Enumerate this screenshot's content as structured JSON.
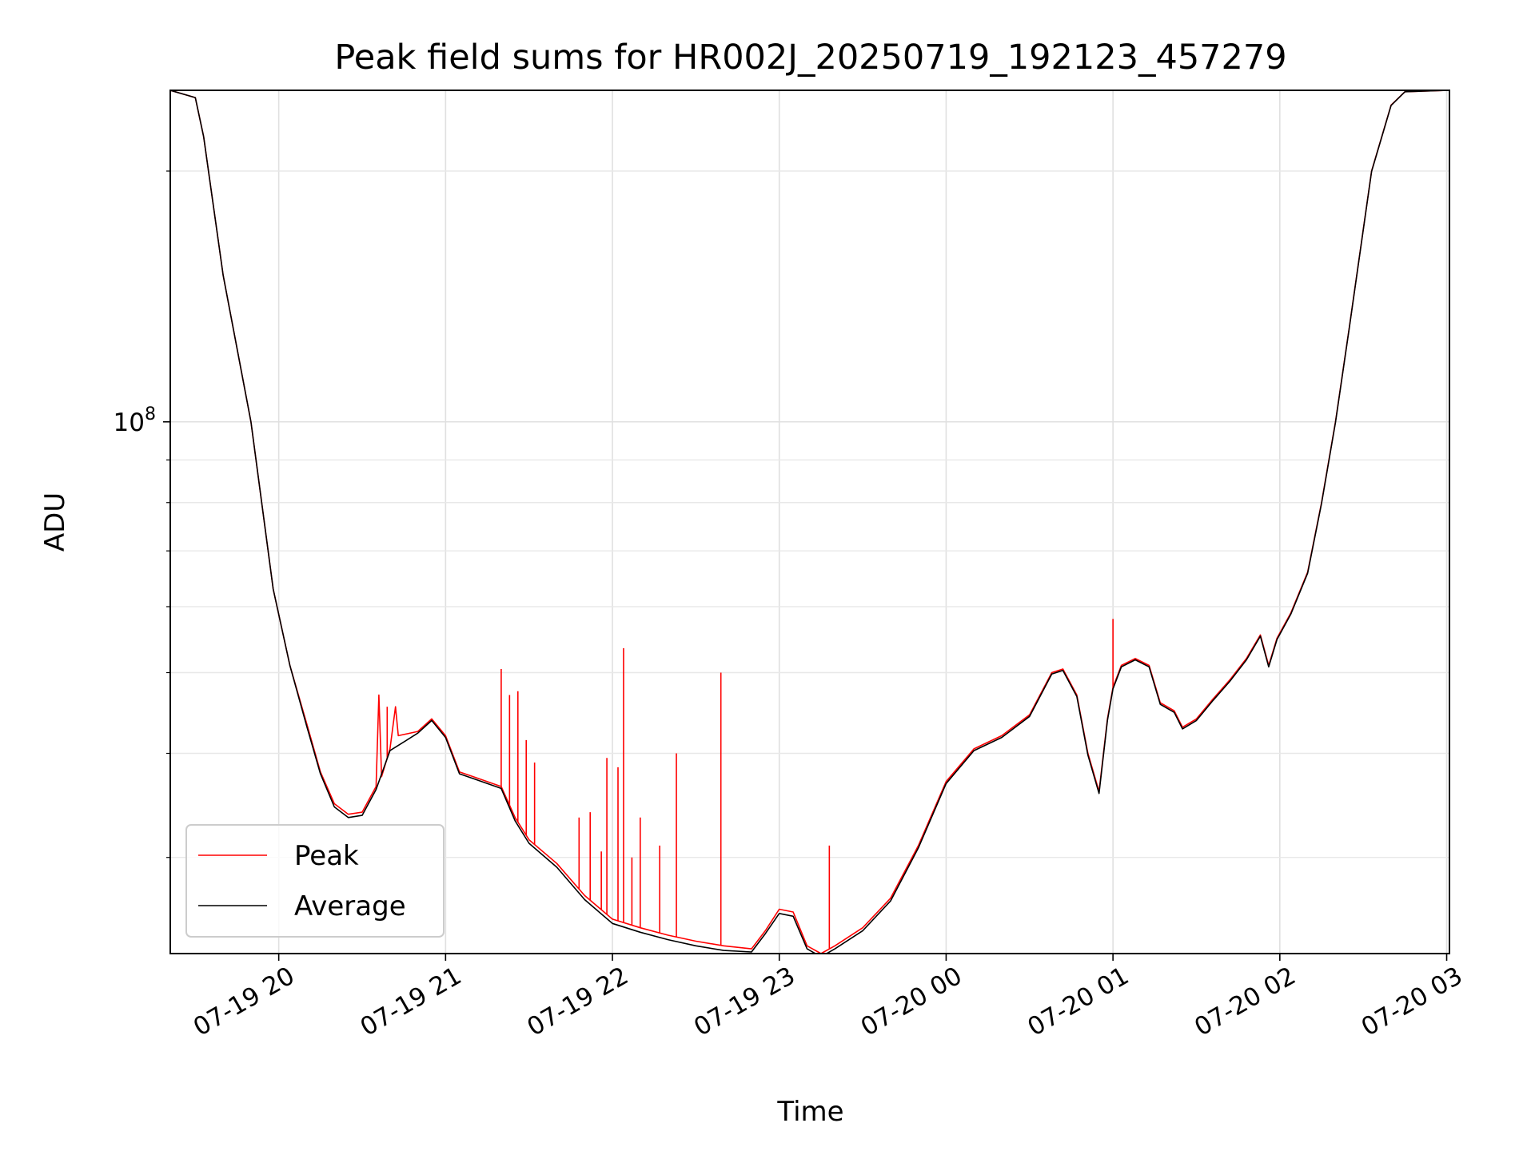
{
  "chart_data": {
    "type": "line",
    "title": "Peak field sums for HR002J_20250719_192123_457279",
    "xlabel": "Time",
    "ylabel": "ADU",
    "y_scale": "log",
    "x_unit": "datetime",
    "xlim": [
      "2025-07-19 19:21",
      "2025-07-20 03:01"
    ],
    "ylim": [
      23000000,
      250000000
    ],
    "grid": true,
    "legend": {
      "placement": "lower-left"
    },
    "x_ticks": [
      {
        "t": "2025-07-19 20:00",
        "label": "07-19 20"
      },
      {
        "t": "2025-07-19 21:00",
        "label": "07-19 21"
      },
      {
        "t": "2025-07-19 22:00",
        "label": "07-19 22"
      },
      {
        "t": "2025-07-19 23:00",
        "label": "07-19 23"
      },
      {
        "t": "2025-07-20 00:00",
        "label": "07-20 00"
      },
      {
        "t": "2025-07-20 01:00",
        "label": "07-20 01"
      },
      {
        "t": "2025-07-20 02:00",
        "label": "07-20 02"
      },
      {
        "t": "2025-07-20 03:00",
        "label": "07-20 03"
      }
    ],
    "y_major_ticks": [
      {
        "v": 100000000,
        "label_base": "10",
        "label_exp": "8"
      }
    ],
    "y_minor_ticks": [
      30000000,
      40000000,
      50000000,
      60000000,
      70000000,
      80000000,
      90000000,
      200000000
    ],
    "series": [
      {
        "name": "Peak",
        "color": "#ff0000",
        "points": [
          [
            "2025-07-19 19:21",
            250000000
          ],
          [
            "2025-07-19 19:30",
            245000000
          ],
          [
            "2025-07-19 19:33",
            220000000
          ],
          [
            "2025-07-19 19:40",
            150000000
          ],
          [
            "2025-07-19 19:50",
            100000000
          ],
          [
            "2025-07-19 19:58",
            63000000
          ],
          [
            "2025-07-19 20:04",
            51000000
          ],
          [
            "2025-07-19 20:10",
            43500000
          ],
          [
            "2025-07-19 20:15",
            38000000
          ],
          [
            "2025-07-19 20:20",
            34800000
          ],
          [
            "2025-07-19 20:25",
            33800000
          ],
          [
            "2025-07-19 20:30",
            34000000
          ],
          [
            "2025-07-19 20:35",
            36500000
          ],
          [
            "2025-07-19 20:36",
            47000000
          ],
          [
            "2025-07-19 20:37",
            37500000
          ],
          [
            "2025-07-19 20:40",
            40500000
          ],
          [
            "2025-07-19 20:42",
            45500000
          ],
          [
            "2025-07-19 20:43",
            42000000
          ],
          [
            "2025-07-19 20:50",
            42500000
          ],
          [
            "2025-07-19 20:55",
            44000000
          ],
          [
            "2025-07-19 21:00",
            42000000
          ],
          [
            "2025-07-19 21:05",
            38000000
          ],
          [
            "2025-07-19 21:10",
            37500000
          ],
          [
            "2025-07-19 21:20",
            36500000
          ],
          [
            "2025-07-19 21:25",
            33500000
          ],
          [
            "2025-07-19 21:30",
            31500000
          ],
          [
            "2025-07-19 21:40",
            29500000
          ],
          [
            "2025-07-19 21:50",
            27000000
          ],
          [
            "2025-07-19 22:00",
            25300000
          ],
          [
            "2025-07-19 22:10",
            24700000
          ],
          [
            "2025-07-19 22:20",
            24200000
          ],
          [
            "2025-07-19 22:30",
            23800000
          ],
          [
            "2025-07-19 22:40",
            23500000
          ],
          [
            "2025-07-19 22:50",
            23300000
          ],
          [
            "2025-07-19 22:55",
            24500000
          ],
          [
            "2025-07-19 23:00",
            26000000
          ],
          [
            "2025-07-19 23:05",
            25800000
          ],
          [
            "2025-07-19 23:10",
            23500000
          ],
          [
            "2025-07-19 23:15",
            23000000
          ],
          [
            "2025-07-19 23:20",
            23500000
          ],
          [
            "2025-07-19 23:30",
            24700000
          ],
          [
            "2025-07-19 23:40",
            26800000
          ],
          [
            "2025-07-19 23:50",
            31000000
          ],
          [
            "2025-07-20 00:00",
            37000000
          ],
          [
            "2025-07-20 00:10",
            40500000
          ],
          [
            "2025-07-20 00:20",
            42000000
          ],
          [
            "2025-07-20 00:30",
            44500000
          ],
          [
            "2025-07-20 00:38",
            50000000
          ],
          [
            "2025-07-20 00:42",
            50500000
          ],
          [
            "2025-07-20 00:47",
            47000000
          ],
          [
            "2025-07-20 00:51",
            40000000
          ],
          [
            "2025-07-20 00:55",
            36000000
          ],
          [
            "2025-07-20 00:58",
            44000000
          ],
          [
            "2025-07-20 01:00",
            48000000
          ],
          [
            "2025-07-20 01:03",
            51000000
          ],
          [
            "2025-07-20 01:08",
            52000000
          ],
          [
            "2025-07-20 01:13",
            51000000
          ],
          [
            "2025-07-20 01:17",
            46000000
          ],
          [
            "2025-07-20 01:22",
            45000000
          ],
          [
            "2025-07-20 01:25",
            43000000
          ],
          [
            "2025-07-20 01:30",
            44000000
          ],
          [
            "2025-07-20 01:36",
            46500000
          ],
          [
            "2025-07-20 01:42",
            49000000
          ],
          [
            "2025-07-20 01:48",
            52000000
          ],
          [
            "2025-07-20 01:53",
            55500000
          ],
          [
            "2025-07-20 01:56",
            51000000
          ],
          [
            "2025-07-20 01:59",
            55000000
          ],
          [
            "2025-07-20 02:04",
            59000000
          ],
          [
            "2025-07-20 02:10",
            66000000
          ],
          [
            "2025-07-20 02:15",
            80000000
          ],
          [
            "2025-07-20 02:20",
            100000000
          ],
          [
            "2025-07-20 02:25",
            130000000
          ],
          [
            "2025-07-20 02:33",
            200000000
          ],
          [
            "2025-07-20 02:40",
            240000000
          ],
          [
            "2025-07-20 02:45",
            249000000
          ],
          [
            "2025-07-20 03:01",
            250000000
          ]
        ],
        "spikes": [
          [
            "2025-07-19 20:36",
            47000000
          ],
          [
            "2025-07-19 20:39",
            45500000
          ],
          [
            "2025-07-19 21:20",
            50500000
          ],
          [
            "2025-07-19 21:23",
            47000000
          ],
          [
            "2025-07-19 21:26",
            47500000
          ],
          [
            "2025-07-19 21:29",
            41500000
          ],
          [
            "2025-07-19 21:32",
            39000000
          ],
          [
            "2025-07-19 21:48",
            33500000
          ],
          [
            "2025-07-19 21:52",
            34000000
          ],
          [
            "2025-07-19 21:56",
            30500000
          ],
          [
            "2025-07-19 21:58",
            39500000
          ],
          [
            "2025-07-19 22:02",
            38500000
          ],
          [
            "2025-07-19 22:04",
            53500000
          ],
          [
            "2025-07-19 22:07",
            30000000
          ],
          [
            "2025-07-19 22:10",
            33500000
          ],
          [
            "2025-07-19 22:17",
            31000000
          ],
          [
            "2025-07-19 22:23",
            40000000
          ],
          [
            "2025-07-19 22:39",
            50000000
          ],
          [
            "2025-07-19 23:18",
            31000000
          ],
          [
            "2025-07-20 01:00",
            58000000
          ]
        ]
      },
      {
        "name": "Average",
        "color": "#000000",
        "points": [
          [
            "2025-07-19 19:21",
            250000000
          ],
          [
            "2025-07-19 19:30",
            245000000
          ],
          [
            "2025-07-19 19:33",
            220000000
          ],
          [
            "2025-07-19 19:40",
            150000000
          ],
          [
            "2025-07-19 19:50",
            100000000
          ],
          [
            "2025-07-19 19:58",
            63000000
          ],
          [
            "2025-07-19 20:04",
            51000000
          ],
          [
            "2025-07-19 20:10",
            43200000
          ],
          [
            "2025-07-19 20:15",
            37800000
          ],
          [
            "2025-07-19 20:20",
            34500000
          ],
          [
            "2025-07-19 20:25",
            33500000
          ],
          [
            "2025-07-19 20:30",
            33700000
          ],
          [
            "2025-07-19 20:35",
            36200000
          ],
          [
            "2025-07-19 20:40",
            40300000
          ],
          [
            "2025-07-19 20:50",
            42300000
          ],
          [
            "2025-07-19 20:55",
            43800000
          ],
          [
            "2025-07-19 21:00",
            41800000
          ],
          [
            "2025-07-19 21:05",
            37800000
          ],
          [
            "2025-07-19 21:10",
            37300000
          ],
          [
            "2025-07-19 21:20",
            36300000
          ],
          [
            "2025-07-19 21:25",
            33200000
          ],
          [
            "2025-07-19 21:30",
            31200000
          ],
          [
            "2025-07-19 21:40",
            29200000
          ],
          [
            "2025-07-19 21:50",
            26700000
          ],
          [
            "2025-07-19 22:00",
            25000000
          ],
          [
            "2025-07-19 22:10",
            24400000
          ],
          [
            "2025-07-19 22:20",
            23900000
          ],
          [
            "2025-07-19 22:30",
            23500000
          ],
          [
            "2025-07-19 22:40",
            23200000
          ],
          [
            "2025-07-19 22:50",
            23100000
          ],
          [
            "2025-07-19 22:55",
            24300000
          ],
          [
            "2025-07-19 23:00",
            25700000
          ],
          [
            "2025-07-19 23:05",
            25500000
          ],
          [
            "2025-07-19 23:10",
            23300000
          ],
          [
            "2025-07-19 23:15",
            22800000
          ],
          [
            "2025-07-19 23:20",
            23300000
          ],
          [
            "2025-07-19 23:30",
            24500000
          ],
          [
            "2025-07-19 23:40",
            26600000
          ],
          [
            "2025-07-19 23:50",
            30800000
          ],
          [
            "2025-07-20 00:00",
            36800000
          ],
          [
            "2025-07-20 00:10",
            40300000
          ],
          [
            "2025-07-20 00:20",
            41800000
          ],
          [
            "2025-07-20 00:30",
            44300000
          ],
          [
            "2025-07-20 00:38",
            49800000
          ],
          [
            "2025-07-20 00:42",
            50300000
          ],
          [
            "2025-07-20 00:47",
            46800000
          ],
          [
            "2025-07-20 00:51",
            39800000
          ],
          [
            "2025-07-20 00:55",
            35800000
          ],
          [
            "2025-07-20 00:58",
            43800000
          ],
          [
            "2025-07-20 01:00",
            47800000
          ],
          [
            "2025-07-20 01:03",
            50800000
          ],
          [
            "2025-07-20 01:08",
            51800000
          ],
          [
            "2025-07-20 01:13",
            50800000
          ],
          [
            "2025-07-20 01:17",
            45800000
          ],
          [
            "2025-07-20 01:22",
            44800000
          ],
          [
            "2025-07-20 01:25",
            42800000
          ],
          [
            "2025-07-20 01:30",
            43800000
          ],
          [
            "2025-07-20 01:36",
            46300000
          ],
          [
            "2025-07-20 01:42",
            48800000
          ],
          [
            "2025-07-20 01:48",
            51800000
          ],
          [
            "2025-07-20 01:53",
            55300000
          ],
          [
            "2025-07-20 01:56",
            50800000
          ],
          [
            "2025-07-20 01:59",
            54800000
          ],
          [
            "2025-07-20 02:04",
            58800000
          ],
          [
            "2025-07-20 02:10",
            65800000
          ],
          [
            "2025-07-20 02:15",
            79800000
          ],
          [
            "2025-07-20 02:20",
            99800000
          ],
          [
            "2025-07-20 02:25",
            129800000
          ],
          [
            "2025-07-20 02:33",
            199800000
          ],
          [
            "2025-07-20 02:40",
            239800000
          ],
          [
            "2025-07-20 02:45",
            249000000
          ],
          [
            "2025-07-20 03:01",
            250000000
          ]
        ]
      }
    ]
  }
}
